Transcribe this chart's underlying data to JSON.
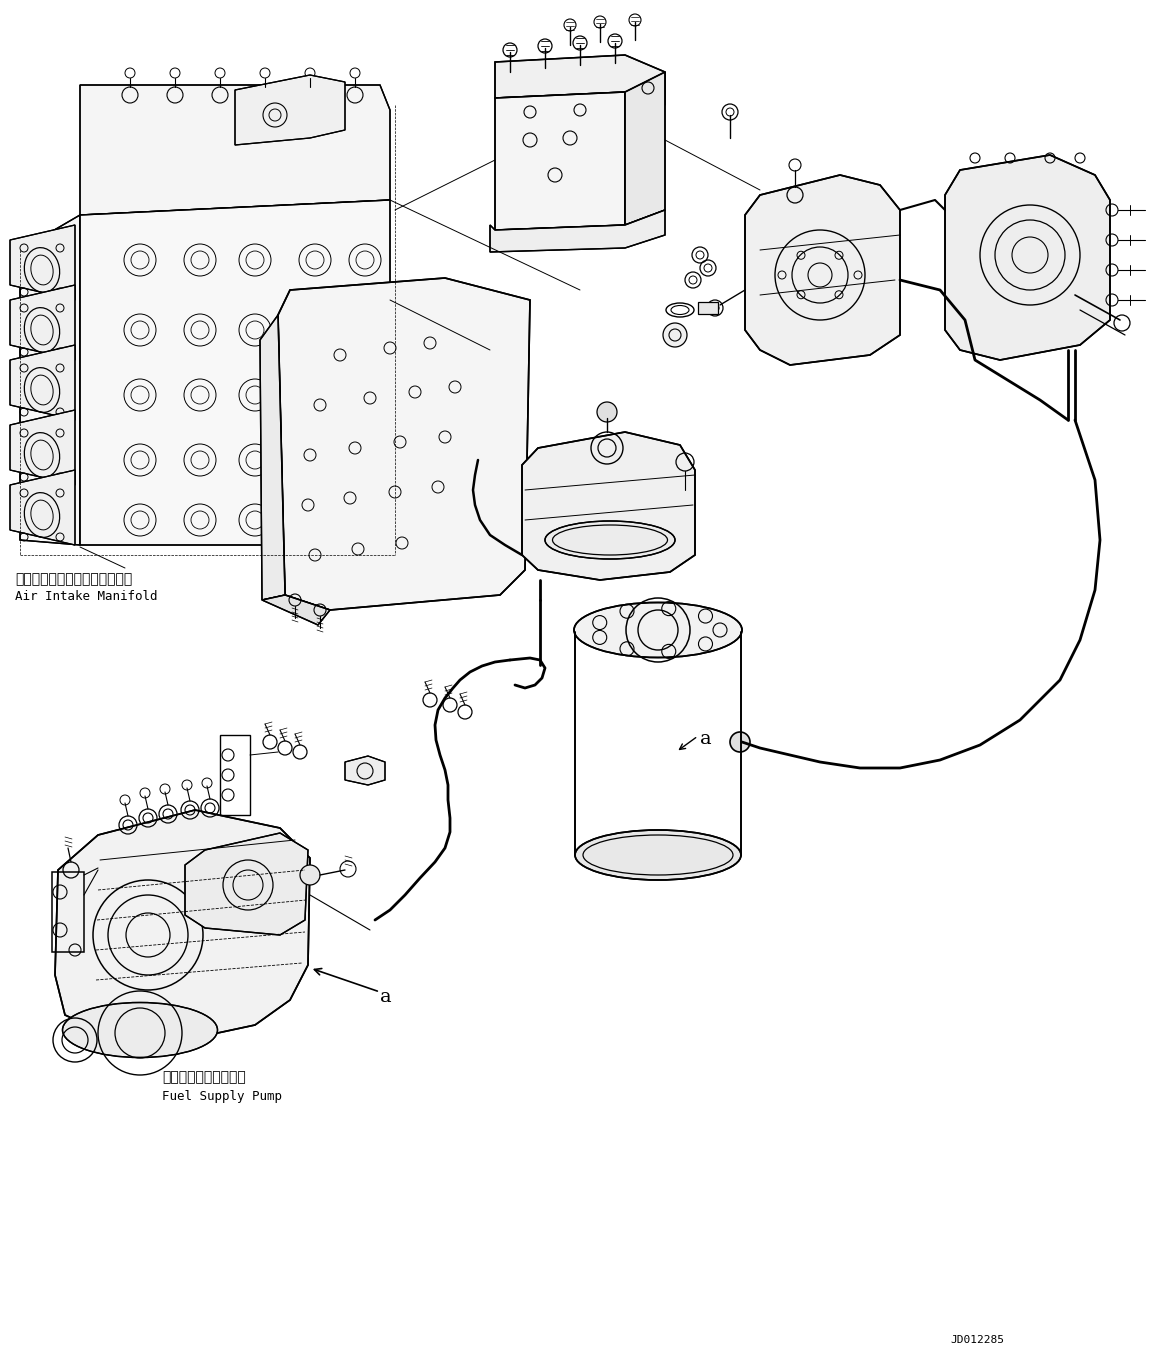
{
  "bg_color": "#ffffff",
  "line_color": "#000000",
  "fig_width": 11.63,
  "fig_height": 13.68,
  "dpi": 100,
  "label_air_intake_jp": "エアーインテークマニホールド",
  "label_air_intake_en": "Air Intake Manifold",
  "label_fuel_pump_jp": "フェルサプライボンプ",
  "label_fuel_pump_en": "Fuel Supply Pump",
  "label_a_pump": "a",
  "label_a_filter": "a",
  "drawing_number": "JD012285"
}
